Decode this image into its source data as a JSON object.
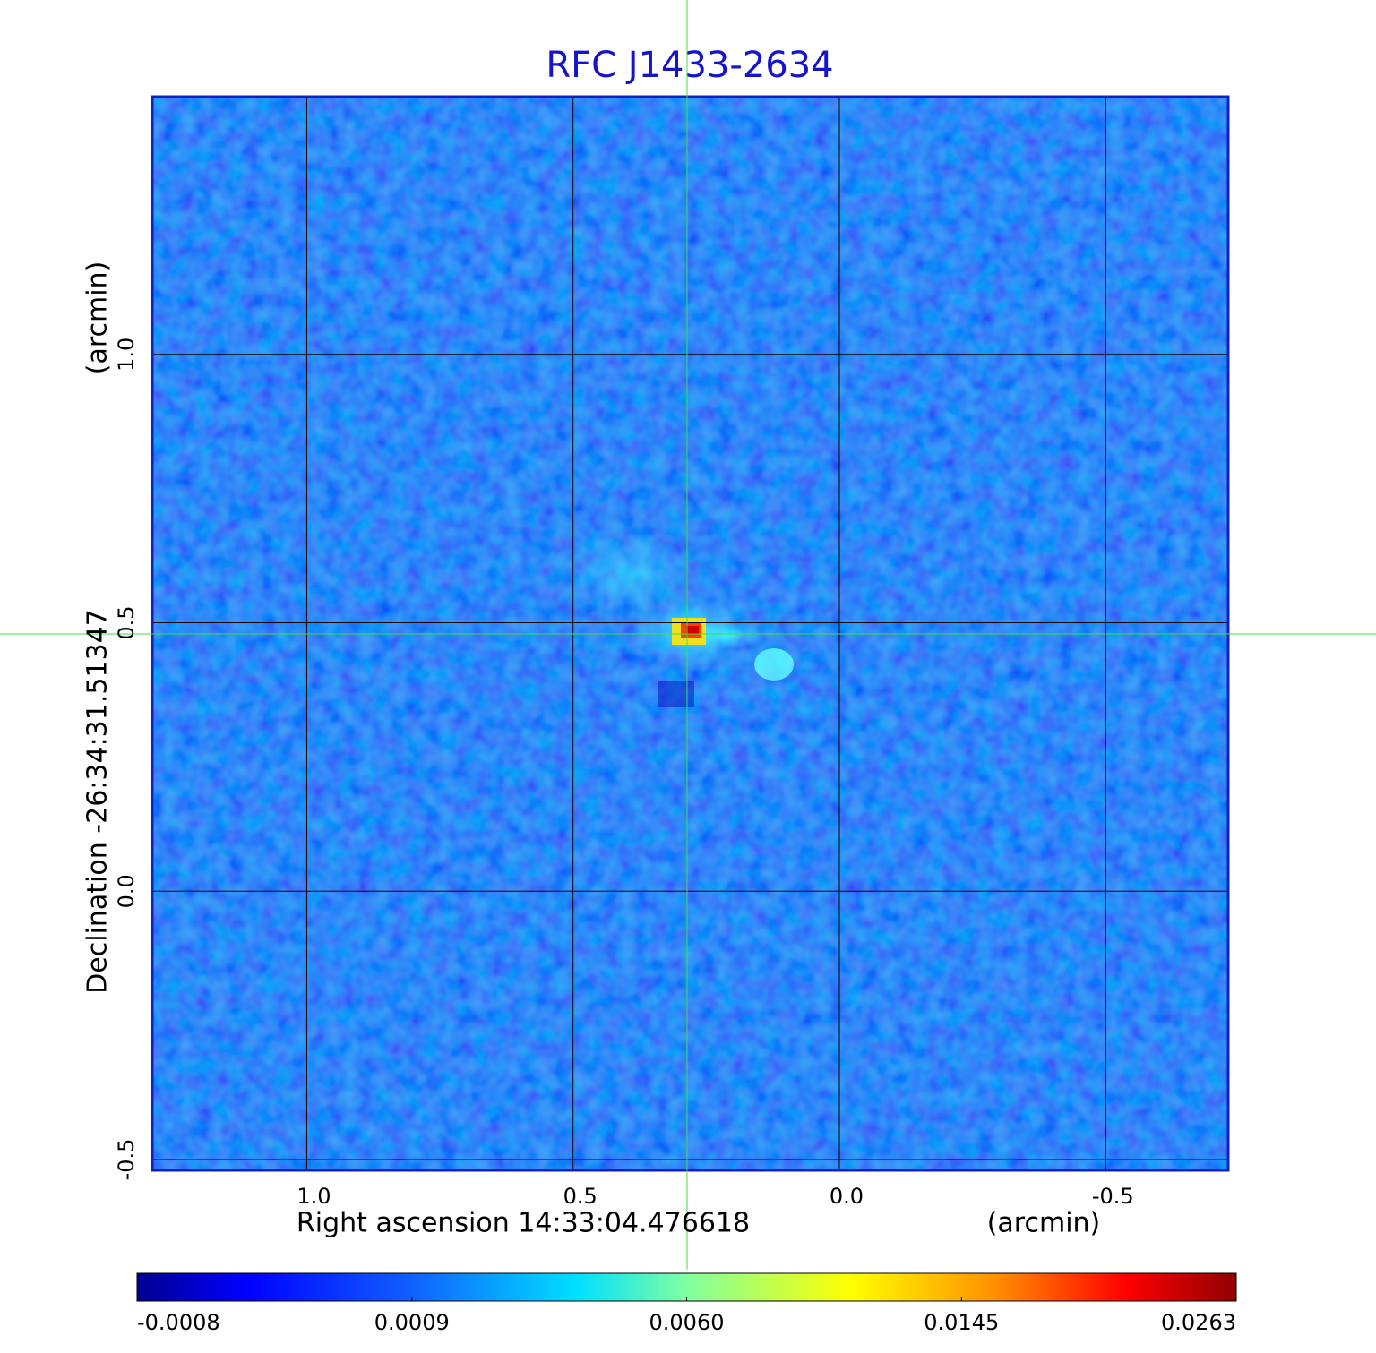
{
  "chart_data": {
    "type": "image",
    "title": "RFC J1433-2634",
    "x_label": "Right ascension  14:33:04.476618",
    "x_unit": "(arcmin)",
    "y_label": "Declination  -26:34:31.51347",
    "y_unit": "(arcmin)",
    "xlim": [
      1.29,
      -0.73
    ],
    "ylim": [
      -0.52,
      1.48
    ],
    "xticks": [
      {
        "value": 1,
        "label": "1.0"
      },
      {
        "value": 0.5,
        "label": "0.5"
      },
      {
        "value": 0,
        "label": "0.0"
      },
      {
        "value": -0.5,
        "label": "-0.5"
      }
    ],
    "yticks": [
      {
        "value": -0.5,
        "label": "-0.5"
      },
      {
        "value": 0,
        "label": "0.0"
      },
      {
        "value": 0.5,
        "label": "0.5"
      },
      {
        "value": 1,
        "label": "1.0"
      }
    ],
    "grid": true,
    "colorbar_ticks": [
      -0.0008,
      0.0009,
      {
        "value": 0.006,
        "label": "0.0060"
      },
      0.0145,
      0.0263
    ]
  }
}
